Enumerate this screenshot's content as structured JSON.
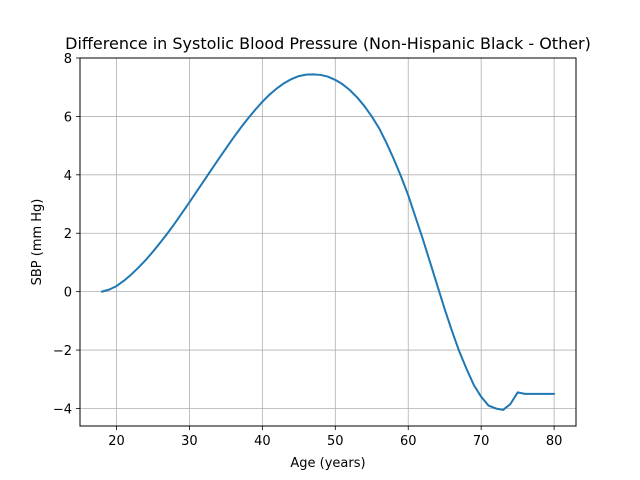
{
  "chart_data": {
    "type": "line",
    "title": "Difference in Systolic Blood Pressure (Non-Hispanic Black - Other)",
    "xlabel": "Age (years)",
    "ylabel": "SBP (mm Hg)",
    "xlim": [
      15,
      83
    ],
    "ylim": [
      -4.6,
      8
    ],
    "xticks": [
      20,
      30,
      40,
      50,
      60,
      70,
      80
    ],
    "yticks": [
      -4,
      -2,
      0,
      2,
      4,
      6,
      8
    ],
    "xtick_labels": [
      "20",
      "30",
      "40",
      "50",
      "60",
      "70",
      "80"
    ],
    "ytick_labels": [
      "−4",
      "−2",
      "0",
      "2",
      "4",
      "6",
      "8"
    ],
    "grid": true,
    "line_color": "#1f77b4",
    "series": [
      {
        "x": [
          18,
          19,
          20,
          21,
          22,
          23,
          24,
          25,
          26,
          27,
          28,
          29,
          30,
          31,
          32,
          33,
          34,
          35,
          36,
          37,
          38,
          39,
          40,
          41,
          42,
          43,
          44,
          45,
          46,
          47,
          48,
          49,
          50,
          51,
          52,
          53,
          54,
          55,
          56,
          57,
          58,
          59,
          60,
          61,
          62,
          63,
          64,
          65,
          66,
          67,
          68,
          69,
          70,
          71,
          72,
          73,
          74,
          75,
          76,
          77,
          78,
          79,
          80
        ],
        "values": [
          0.0,
          0.07,
          0.19,
          0.37,
          0.58,
          0.82,
          1.08,
          1.37,
          1.68,
          2.0,
          2.34,
          2.7,
          3.06,
          3.43,
          3.8,
          4.17,
          4.54,
          4.9,
          5.26,
          5.6,
          5.92,
          6.22,
          6.5,
          6.75,
          6.96,
          7.14,
          7.28,
          7.38,
          7.43,
          7.44,
          7.42,
          7.36,
          7.25,
          7.1,
          6.9,
          6.65,
          6.35,
          6.0,
          5.6,
          5.1,
          4.55,
          3.95,
          3.3,
          2.55,
          1.8,
          1.0,
          0.2,
          -0.6,
          -1.35,
          -2.05,
          -2.65,
          -3.2,
          -3.6,
          -3.9,
          -4.0,
          -4.05,
          -3.85,
          -3.45,
          -3.5,
          -3.5,
          -3.5,
          -3.5,
          -3.5
        ]
      }
    ]
  }
}
